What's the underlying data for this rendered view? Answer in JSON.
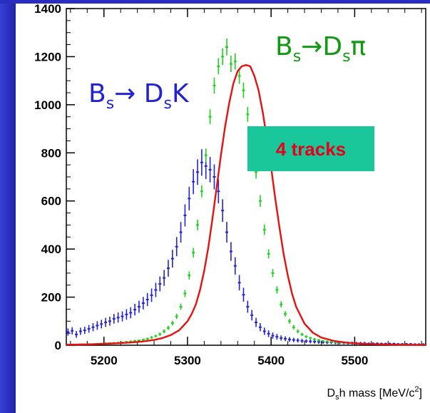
{
  "chart_data": {
    "type": "scatter",
    "title": "",
    "xlabel": {
      "base": "D",
      "sub": "s",
      "rest": "h mass [MeV/c",
      "sup": "2",
      "close": "]"
    },
    "ylabel": "",
    "xlim": [
      5155,
      5585
    ],
    "ylim": [
      0,
      1400
    ],
    "x_ticks": [
      5200,
      5300,
      5400,
      5500
    ],
    "y_ticks": [
      0,
      200,
      400,
      600,
      800,
      1000,
      1200,
      1400
    ],
    "grid": false,
    "annotations": {
      "dsk": {
        "pre": "B",
        "sub1": "s",
        "arrow": "→ D",
        "sub2": "s",
        "post": "K",
        "color": "#2323d6"
      },
      "dspi": {
        "pre": "B",
        "sub1": "s",
        "arrow": "→D",
        "sub2": "s",
        "post": "π",
        "color": "#119a11"
      },
      "tracks": {
        "text": "4 tracks",
        "box_color": "#19c79a",
        "text_color": "#e8001a"
      }
    },
    "series": [
      {
        "color": "#2323d6",
        "style": "points_with_errors",
        "x": [
          5157,
          5162,
          5167,
          5172,
          5177,
          5182,
          5187,
          5192,
          5197,
          5202,
          5207,
          5212,
          5217,
          5222,
          5227,
          5232,
          5237,
          5242,
          5247,
          5252,
          5257,
          5262,
          5267,
          5272,
          5277,
          5282,
          5287,
          5292,
          5297,
          5302,
          5307,
          5312,
          5317,
          5322,
          5327,
          5332,
          5337,
          5342,
          5347,
          5352,
          5357,
          5362,
          5367,
          5372,
          5377,
          5382,
          5387,
          5392,
          5397,
          5402,
          5407,
          5412,
          5417,
          5422,
          5427,
          5432,
          5437,
          5442,
          5447,
          5452,
          5457,
          5462,
          5467,
          5472,
          5477,
          5482,
          5487,
          5492,
          5497,
          5502,
          5507,
          5512,
          5517,
          5522,
          5527,
          5532,
          5537,
          5542,
          5547,
          5552,
          5557,
          5562,
          5567,
          5572,
          5577,
          5582
        ],
        "y": [
          55,
          60,
          45,
          58,
          62,
          68,
          75,
          82,
          88,
          95,
          100,
          110,
          115,
          120,
          128,
          135,
          148,
          160,
          175,
          190,
          208,
          230,
          255,
          280,
          320,
          360,
          410,
          470,
          540,
          610,
          680,
          720,
          760,
          745,
          730,
          700,
          640,
          560,
          470,
          390,
          330,
          260,
          210,
          160,
          125,
          95,
          75,
          58,
          48,
          40,
          35,
          30,
          27,
          24,
          22,
          20,
          18,
          17,
          16,
          15,
          14,
          13,
          12,
          12,
          11,
          10,
          10,
          9,
          9,
          8,
          8,
          8,
          7,
          7,
          7,
          6,
          6,
          6,
          6,
          5,
          5,
          5,
          5,
          4,
          4,
          4
        ],
        "err": [
          15,
          15,
          14,
          15,
          15,
          16,
          17,
          18,
          18,
          19,
          19,
          20,
          21,
          21,
          22,
          23,
          24,
          25,
          26,
          27,
          28,
          30,
          31,
          33,
          35,
          37,
          40,
          43,
          46,
          49,
          52,
          53,
          55,
          54,
          53,
          52,
          50,
          47,
          43,
          39,
          36,
          32,
          29,
          25,
          22,
          19,
          17,
          15,
          14,
          13,
          12,
          11,
          10,
          10,
          9,
          9,
          9,
          8,
          8,
          8,
          8,
          7,
          7,
          7,
          7,
          6,
          6,
          6,
          6,
          6,
          6,
          6,
          5,
          5,
          5,
          5,
          5,
          5,
          5,
          4,
          4,
          4,
          4,
          4,
          4,
          4
        ]
      },
      {
        "color": "#1fd11f",
        "style": "points_with_errors",
        "x": [
          5157,
          5162,
          5167,
          5172,
          5177,
          5182,
          5187,
          5192,
          5197,
          5202,
          5207,
          5212,
          5217,
          5222,
          5227,
          5232,
          5237,
          5242,
          5247,
          5252,
          5257,
          5262,
          5267,
          5272,
          5277,
          5282,
          5287,
          5292,
          5297,
          5302,
          5307,
          5312,
          5317,
          5322,
          5327,
          5332,
          5337,
          5342,
          5347,
          5352,
          5357,
          5362,
          5367,
          5372,
          5377,
          5382,
          5387,
          5392,
          5397,
          5402,
          5407,
          5412,
          5417,
          5422,
          5427,
          5432,
          5437,
          5442,
          5447,
          5452,
          5457,
          5462,
          5467,
          5472,
          5477,
          5482,
          5487,
          5492,
          5497,
          5502,
          5507,
          5512,
          5517,
          5522,
          5527,
          5532,
          5537,
          5542,
          5547,
          5552,
          5557,
          5562,
          5567,
          5572,
          5577,
          5582
        ],
        "y": [
          2,
          3,
          3,
          4,
          4,
          5,
          5,
          6,
          7,
          8,
          9,
          10,
          11,
          12,
          14,
          16,
          18,
          20,
          23,
          27,
          32,
          38,
          46,
          58,
          72,
          92,
          120,
          160,
          215,
          290,
          385,
          500,
          640,
          790,
          950,
          1080,
          1160,
          1200,
          1240,
          1170,
          1180,
          1120,
          1060,
          960,
          840,
          720,
          600,
          480,
          380,
          300,
          230,
          170,
          130,
          100,
          75,
          58,
          45,
          36,
          30,
          25,
          21,
          18,
          16,
          14,
          12,
          11,
          10,
          9,
          8,
          7,
          6,
          6,
          5,
          5,
          4,
          4,
          4,
          3,
          3,
          3,
          3,
          2,
          2,
          2,
          2,
          2
        ],
        "err": [
          2,
          2,
          2,
          2,
          2,
          2,
          2,
          2,
          3,
          3,
          3,
          3,
          3,
          3,
          4,
          4,
          4,
          4,
          5,
          5,
          6,
          6,
          7,
          8,
          9,
          10,
          11,
          13,
          15,
          17,
          20,
          22,
          25,
          28,
          31,
          33,
          34,
          35,
          35,
          34,
          34,
          33,
          32,
          31,
          29,
          27,
          24,
          22,
          19,
          17,
          15,
          13,
          11,
          10,
          9,
          8,
          7,
          6,
          5,
          5,
          5,
          4,
          4,
          4,
          3,
          3,
          3,
          3,
          3,
          3,
          2,
          2,
          2,
          2,
          2,
          2,
          2,
          2,
          2,
          2,
          2,
          2,
          2,
          2,
          2,
          2
        ]
      },
      {
        "color": "#e81010",
        "style": "line",
        "x": [
          5155,
          5170,
          5185,
          5200,
          5215,
          5230,
          5245,
          5260,
          5270,
          5280,
          5290,
          5300,
          5305,
          5310,
          5315,
          5320,
          5325,
          5330,
          5335,
          5340,
          5345,
          5350,
          5355,
          5360,
          5365,
          5370,
          5375,
          5380,
          5385,
          5390,
          5395,
          5400,
          5405,
          5410,
          5415,
          5420,
          5425,
          5430,
          5440,
          5450,
          5460,
          5475,
          5490,
          5510,
          5530,
          5555,
          5585
        ],
        "y": [
          2,
          3,
          4,
          6,
          8,
          11,
          15,
          22,
          30,
          42,
          62,
          100,
          130,
          170,
          230,
          310,
          410,
          530,
          660,
          790,
          910,
          1010,
          1090,
          1140,
          1160,
          1165,
          1160,
          1120,
          1060,
          970,
          860,
          740,
          610,
          490,
          380,
          290,
          215,
          160,
          90,
          52,
          32,
          18,
          11,
          6,
          4,
          2,
          1
        ]
      }
    ]
  }
}
